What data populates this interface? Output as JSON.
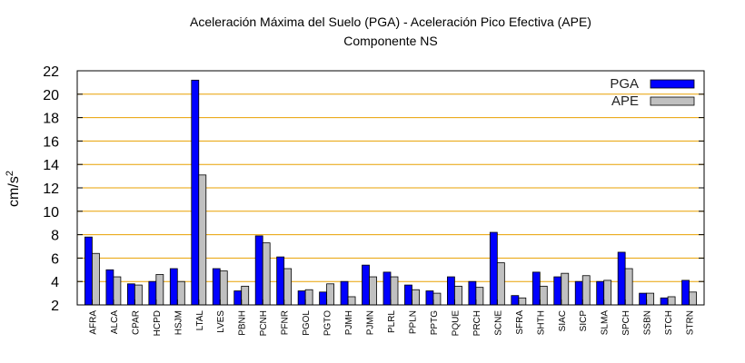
{
  "chart_data": {
    "type": "bar",
    "title": "Aceleración Máxima del Suelo (PGA) -  Aceleración Pico Efectiva (APE)",
    "subtitle": "Componente NS",
    "xlabel": "",
    "ylabel": "cm/s",
    "ylabel_superscript": "2",
    "ylim": [
      2,
      22
    ],
    "yticks": [
      2,
      4,
      6,
      8,
      10,
      12,
      14,
      16,
      18,
      20,
      22
    ],
    "grid": true,
    "legend_position": "top-right",
    "categories": [
      "AFRA",
      "ALCA",
      "CPAR",
      "HCPD",
      "HSJM",
      "LTAL",
      "LVES",
      "PBNH",
      "PCNH",
      "PFNR",
      "PGOL",
      "PGTO",
      "PJMH",
      "PJMN",
      "PLRL",
      "PPLN",
      "PPTG",
      "PQUE",
      "PRCH",
      "SCNE",
      "SFRA",
      "SHTH",
      "SIAC",
      "SICP",
      "SLMA",
      "SPCH",
      "SSBN",
      "STCH",
      "STRN"
    ],
    "series": [
      {
        "name": "PGA",
        "color": "#0000ff",
        "values": [
          7.8,
          5.0,
          3.8,
          4.0,
          5.1,
          21.2,
          5.1,
          3.2,
          7.9,
          6.1,
          3.2,
          3.1,
          4.0,
          5.4,
          4.8,
          3.7,
          3.2,
          4.4,
          4.0,
          8.2,
          2.8,
          4.8,
          4.4,
          4.0,
          4.0,
          6.5,
          3.0,
          2.6,
          4.1
        ]
      },
      {
        "name": "APE",
        "color": "#c0c0c0",
        "values": [
          6.4,
          4.4,
          3.7,
          4.6,
          4.0,
          13.1,
          4.9,
          3.6,
          7.3,
          5.1,
          3.3,
          3.8,
          2.7,
          4.4,
          4.4,
          3.3,
          3.0,
          3.6,
          3.5,
          5.6,
          2.6,
          3.6,
          4.7,
          4.5,
          4.1,
          5.1,
          3.0,
          2.7,
          3.1
        ]
      }
    ]
  }
}
